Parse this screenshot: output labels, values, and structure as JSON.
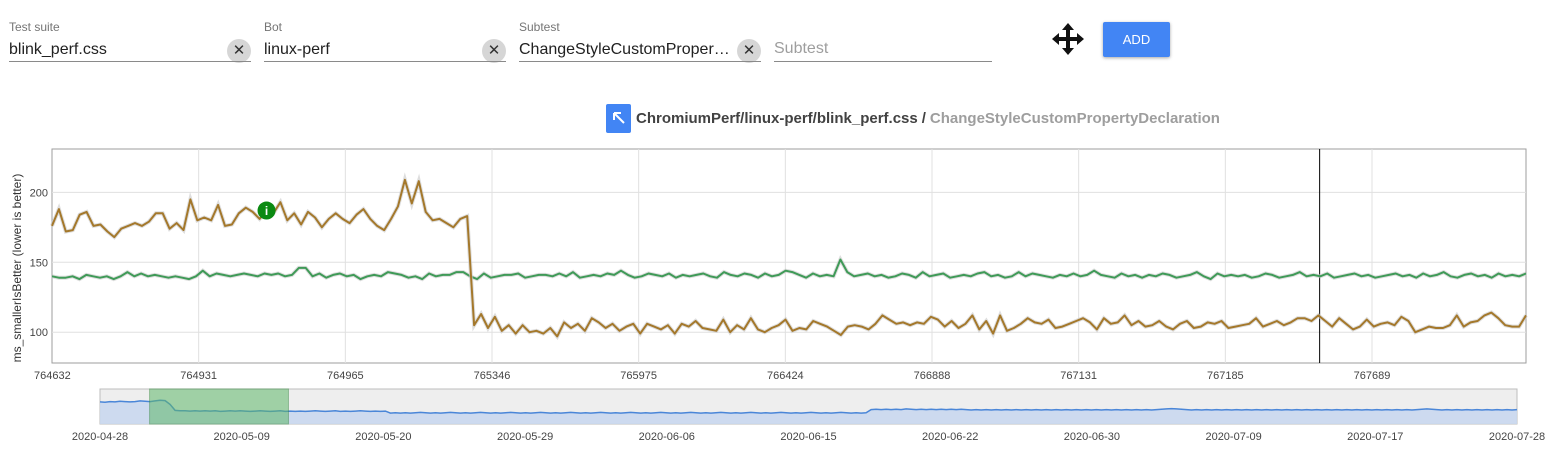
{
  "form": {
    "fields": [
      {
        "label": "Test suite",
        "value": "blink_perf.css"
      },
      {
        "label": "Bot",
        "value": "linux-perf"
      },
      {
        "label": "Subtest",
        "value": "ChangeStyleCustomPropertyDeclaration",
        "display": "ChangeStyleCustomProperty…"
      }
    ],
    "subtest_placeholder": "Subtest",
    "add_label": "ADD",
    "move_icon": "move-arrows-icon",
    "clear_icon": "close-icon"
  },
  "title": {
    "path": "ChromiumPerf/linux-perf/blink_perf.css",
    "separator": "/",
    "subtest": "ChangeStyleCustomPropertyDeclaration",
    "icon": "arrow-up-left-icon"
  },
  "chart_data": [
    {
      "type": "line",
      "ylabel": "ms_smallerIsBetter (lower is better)",
      "ylim": [
        78,
        231
      ],
      "yticks": [
        100,
        150,
        200
      ],
      "x_tick_labels": [
        "764632",
        "764931",
        "764965",
        "765346",
        "765975",
        "766424",
        "766888",
        "767131",
        "767185",
        "767689"
      ],
      "grid": true,
      "cursor_fraction": 0.86,
      "colors": {
        "brown": "#a4782b",
        "green": "#3f9a57",
        "grid": "#e0e0e0",
        "anomaly": "#0b8a12"
      },
      "anomaly": {
        "series": "brown",
        "index": 31,
        "symbol": "i"
      },
      "series": [
        {
          "color": "brown",
          "values": [
            176,
            188,
            172,
            173,
            184,
            186,
            176,
            177,
            172,
            168,
            174,
            176,
            178,
            176,
            179,
            185,
            185,
            174,
            178,
            173,
            195,
            180,
            182,
            180,
            191,
            176,
            177,
            185,
            189,
            186,
            181,
            187,
            185,
            193,
            180,
            185,
            177,
            186,
            182,
            175,
            181,
            185,
            181,
            178,
            184,
            188,
            181,
            176,
            173,
            181,
            190,
            209,
            192,
            208,
            186,
            180,
            181,
            178,
            175,
            181,
            183,
            105,
            113,
            103,
            111,
            101,
            105,
            99,
            105,
            100,
            101,
            99,
            103,
            97,
            107,
            103,
            106,
            101,
            110,
            107,
            103,
            106,
            101,
            104,
            106,
            99,
            106,
            104,
            102,
            105,
            99,
            106,
            104,
            108,
            103,
            102,
            101,
            109,
            100,
            105,
            102,
            110,
            102,
            100,
            103,
            105,
            109,
            101,
            103,
            102,
            108,
            106,
            104,
            101,
            98,
            104,
            105,
            104,
            102,
            106,
            112,
            109,
            106,
            107,
            105,
            107,
            106,
            111,
            109,
            104,
            108,
            103,
            106,
            112,
            102,
            108,
            99,
            112,
            101,
            103,
            106,
            110,
            107,
            106,
            109,
            103,
            104,
            106,
            108,
            110,
            107,
            102,
            110,
            106,
            107,
            112,
            105,
            108,
            104,
            105,
            108,
            104,
            102,
            106,
            108,
            103,
            104,
            107,
            106,
            108,
            103,
            104,
            105,
            106,
            110,
            104,
            106,
            108,
            105,
            107,
            110,
            110,
            108,
            112,
            108,
            104,
            110,
            106,
            102,
            104,
            109,
            104,
            106,
            107,
            105,
            111,
            108,
            100,
            102,
            104,
            103,
            103,
            105,
            112,
            104,
            107,
            108,
            112,
            114,
            110,
            105,
            104,
            104,
            112
          ]
        },
        {
          "color": "green",
          "values": [
            140,
            139,
            139,
            140,
            138,
            141,
            140,
            139,
            140,
            138,
            140,
            143,
            140,
            142,
            140,
            141,
            140,
            139,
            140,
            139,
            138,
            140,
            144,
            140,
            142,
            141,
            140,
            141,
            142,
            141,
            140,
            142,
            141,
            142,
            140,
            141,
            146,
            146,
            140,
            142,
            139,
            141,
            142,
            140,
            141,
            138,
            140,
            141,
            140,
            143,
            142,
            141,
            139,
            140,
            138,
            142,
            140,
            141,
            141,
            143,
            143,
            140,
            138,
            142,
            139,
            140,
            141,
            141,
            142,
            139,
            140,
            141,
            141,
            140,
            142,
            140,
            143,
            139,
            140,
            141,
            140,
            142,
            141,
            144,
            141,
            139,
            140,
            142,
            141,
            140,
            142,
            139,
            141,
            140,
            141,
            142,
            140,
            139,
            143,
            141,
            140,
            142,
            141,
            139,
            142,
            140,
            141,
            144,
            143,
            141,
            139,
            142,
            140,
            141,
            140,
            152,
            143,
            140,
            141,
            142,
            140,
            141,
            139,
            140,
            142,
            141,
            139,
            143,
            140,
            141,
            142,
            139,
            140,
            141,
            140,
            142,
            143,
            140,
            141,
            139,
            140,
            143,
            140,
            142,
            141,
            140,
            139,
            141,
            140,
            142,
            140,
            141,
            144,
            141,
            140,
            139,
            142,
            140,
            141,
            139,
            141,
            140,
            142,
            141,
            139,
            140,
            141,
            143,
            140,
            138,
            142,
            140,
            141,
            140,
            141,
            139,
            140,
            142,
            141,
            139,
            140,
            141,
            143,
            140,
            141,
            140,
            142,
            139,
            140,
            141,
            142,
            140,
            141,
            139,
            140,
            141,
            142,
            140,
            141,
            139,
            142,
            140,
            141,
            143,
            140,
            139,
            141,
            142,
            140,
            141,
            139,
            142,
            140,
            141,
            140,
            142
          ]
        }
      ]
    },
    {
      "type": "area",
      "x_tick_labels": [
        "2020-04-28",
        "2020-05-09",
        "2020-05-20",
        "2020-05-29",
        "2020-06-06",
        "2020-06-15",
        "2020-06-22",
        "2020-06-30",
        "2020-07-09",
        "2020-07-17",
        "2020-07-28"
      ],
      "brush_fraction": [
        0.035,
        0.133
      ],
      "colors": {
        "line": "#4a86d8",
        "fill": "#c9d7ee",
        "background": "#eeeeee",
        "brush": "#5fb86a"
      },
      "series": [
        {
          "values": [
            0.63,
            0.62,
            0.64,
            0.63,
            0.65,
            0.64,
            0.63,
            0.64,
            0.66,
            0.65,
            0.64,
            0.66,
            0.68,
            0.67,
            0.56,
            0.39,
            0.38,
            0.38,
            0.37,
            0.38,
            0.37,
            0.38,
            0.37,
            0.38,
            0.36,
            0.37,
            0.38,
            0.37,
            0.38,
            0.37,
            0.36,
            0.37,
            0.38,
            0.37,
            0.36,
            0.37,
            0.38,
            0.36,
            0.37,
            0.36,
            0.37,
            0.36,
            0.37,
            0.38,
            0.37,
            0.36,
            0.37,
            0.38,
            0.36,
            0.37,
            0.36,
            0.37,
            0.38,
            0.37,
            0.36,
            0.37,
            0.36,
            0.37,
            0.31,
            0.32,
            0.31,
            0.32,
            0.31,
            0.32,
            0.33,
            0.32,
            0.31,
            0.32,
            0.31,
            0.32,
            0.33,
            0.32,
            0.31,
            0.32,
            0.31,
            0.32,
            0.33,
            0.32,
            0.31,
            0.32,
            0.31,
            0.32,
            0.33,
            0.32,
            0.31,
            0.32,
            0.31,
            0.32,
            0.33,
            0.32,
            0.31,
            0.32,
            0.31,
            0.32,
            0.33,
            0.32,
            0.31,
            0.32,
            0.31,
            0.32,
            0.33,
            0.32,
            0.31,
            0.32,
            0.31,
            0.32,
            0.33,
            0.32,
            0.31,
            0.32,
            0.31,
            0.32,
            0.33,
            0.32,
            0.31,
            0.32,
            0.31,
            0.32,
            0.33,
            0.32,
            0.31,
            0.32,
            0.31,
            0.32,
            0.33,
            0.32,
            0.31,
            0.32,
            0.31,
            0.32,
            0.33,
            0.32,
            0.31,
            0.32,
            0.31,
            0.32,
            0.33,
            0.32,
            0.31,
            0.32,
            0.31,
            0.32,
            0.33,
            0.32,
            0.31,
            0.32,
            0.31,
            0.32,
            0.33,
            0.32,
            0.31,
            0.32,
            0.31,
            0.32,
            0.41,
            0.42,
            0.41,
            0.42,
            0.41,
            0.42,
            0.41,
            0.43,
            0.42,
            0.41,
            0.42,
            0.41,
            0.42,
            0.41,
            0.42,
            0.41,
            0.42,
            0.41,
            0.42,
            0.41,
            0.4,
            0.41,
            0.4,
            0.41,
            0.4,
            0.41,
            0.4,
            0.41,
            0.4,
            0.41,
            0.4,
            0.41,
            0.4,
            0.41,
            0.4,
            0.41,
            0.4,
            0.41,
            0.4,
            0.41,
            0.4,
            0.41,
            0.4,
            0.41,
            0.4,
            0.41,
            0.4,
            0.41,
            0.4,
            0.41,
            0.4,
            0.41,
            0.4,
            0.41,
            0.4,
            0.41,
            0.4,
            0.41,
            0.42,
            0.43,
            0.44,
            0.43,
            0.42,
            0.41,
            0.4,
            0.41,
            0.4,
            0.41,
            0.4,
            0.41,
            0.4,
            0.41,
            0.4,
            0.41,
            0.4,
            0.41,
            0.4,
            0.41,
            0.4,
            0.41,
            0.4,
            0.41,
            0.4,
            0.41,
            0.4,
            0.41,
            0.4,
            0.41,
            0.4,
            0.41,
            0.4,
            0.41,
            0.4,
            0.41,
            0.4,
            0.41,
            0.4,
            0.41,
            0.4,
            0.41,
            0.4,
            0.41,
            0.4,
            0.41,
            0.4,
            0.41,
            0.4,
            0.41,
            0.4,
            0.41,
            0.42,
            0.43,
            0.42,
            0.41,
            0.4,
            0.41,
            0.4,
            0.41,
            0.4,
            0.41,
            0.4,
            0.41,
            0.4,
            0.41,
            0.4,
            0.41,
            0.4,
            0.41,
            0.4,
            0.41
          ]
        }
      ]
    }
  ]
}
